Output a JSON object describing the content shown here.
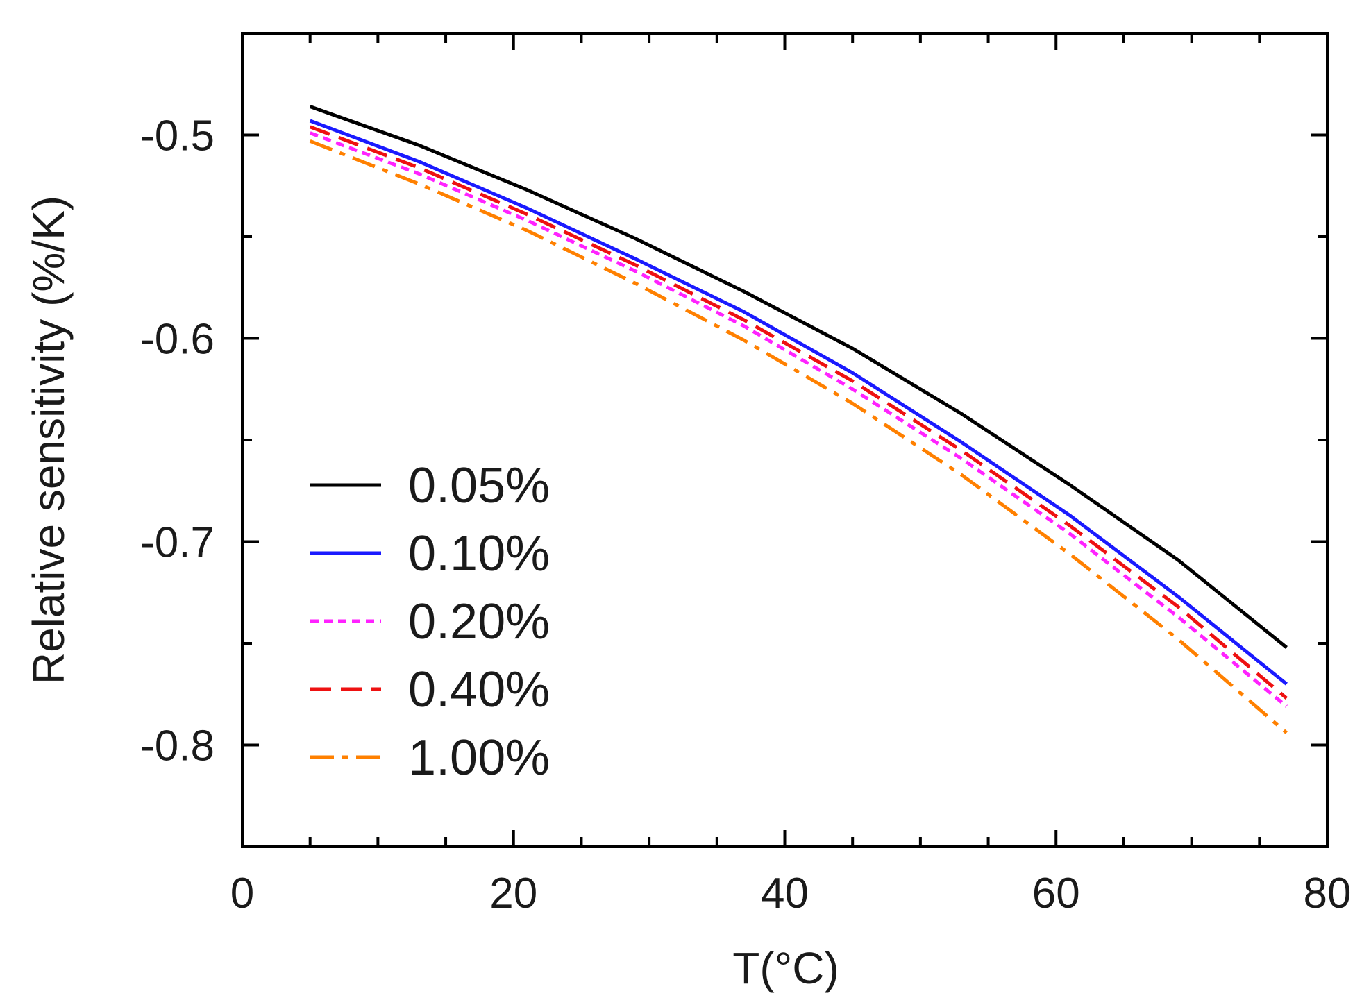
{
  "chart_data": {
    "type": "line",
    "title": "",
    "xlabel": "T(°C)",
    "ylabel": "Relative sensitivity (%/K)",
    "xlim": [
      0,
      80
    ],
    "ylim": [
      -0.85,
      -0.45
    ],
    "x_ticks": [
      0,
      20,
      40,
      60,
      80
    ],
    "x_tick_labels": [
      "0",
      "20",
      "40",
      "60",
      "80"
    ],
    "y_ticks": [
      -0.8,
      -0.7,
      -0.6,
      -0.5
    ],
    "y_tick_labels": [
      "-0.8",
      "-0.7",
      "-0.6",
      "-0.5"
    ],
    "x_minor_step": 5,
    "y_minor_step": 0.05,
    "grid": false,
    "legend_position": "lower-left",
    "x": [
      5,
      13,
      21,
      29,
      37,
      45,
      53,
      61,
      69,
      77
    ],
    "series": [
      {
        "name": "0.05%",
        "color": "#000000",
        "dash": "solid",
        "values": [
          -0.486,
          -0.505,
          -0.527,
          -0.551,
          -0.577,
          -0.605,
          -0.637,
          -0.672,
          -0.709,
          -0.752
        ]
      },
      {
        "name": "0.10%",
        "color": "#1a1aff",
        "dash": "solid",
        "values": [
          -0.493,
          -0.513,
          -0.536,
          -0.561,
          -0.587,
          -0.617,
          -0.651,
          -0.687,
          -0.727,
          -0.77
        ]
      },
      {
        "name": "0.20%",
        "color": "#ff22ff",
        "dash": "short-dash",
        "values": [
          -0.499,
          -0.519,
          -0.542,
          -0.567,
          -0.594,
          -0.625,
          -0.659,
          -0.696,
          -0.737,
          -0.781
        ]
      },
      {
        "name": "0.40%",
        "color": "#ee1111",
        "dash": "dash",
        "values": [
          -0.496,
          -0.516,
          -0.539,
          -0.564,
          -0.591,
          -0.621,
          -0.655,
          -0.692,
          -0.732,
          -0.777
        ]
      },
      {
        "name": "1.00%",
        "color": "#ff8000",
        "dash": "dash-dot",
        "values": [
          -0.503,
          -0.524,
          -0.547,
          -0.573,
          -0.601,
          -0.632,
          -0.667,
          -0.706,
          -0.748,
          -0.794
        ]
      }
    ]
  }
}
